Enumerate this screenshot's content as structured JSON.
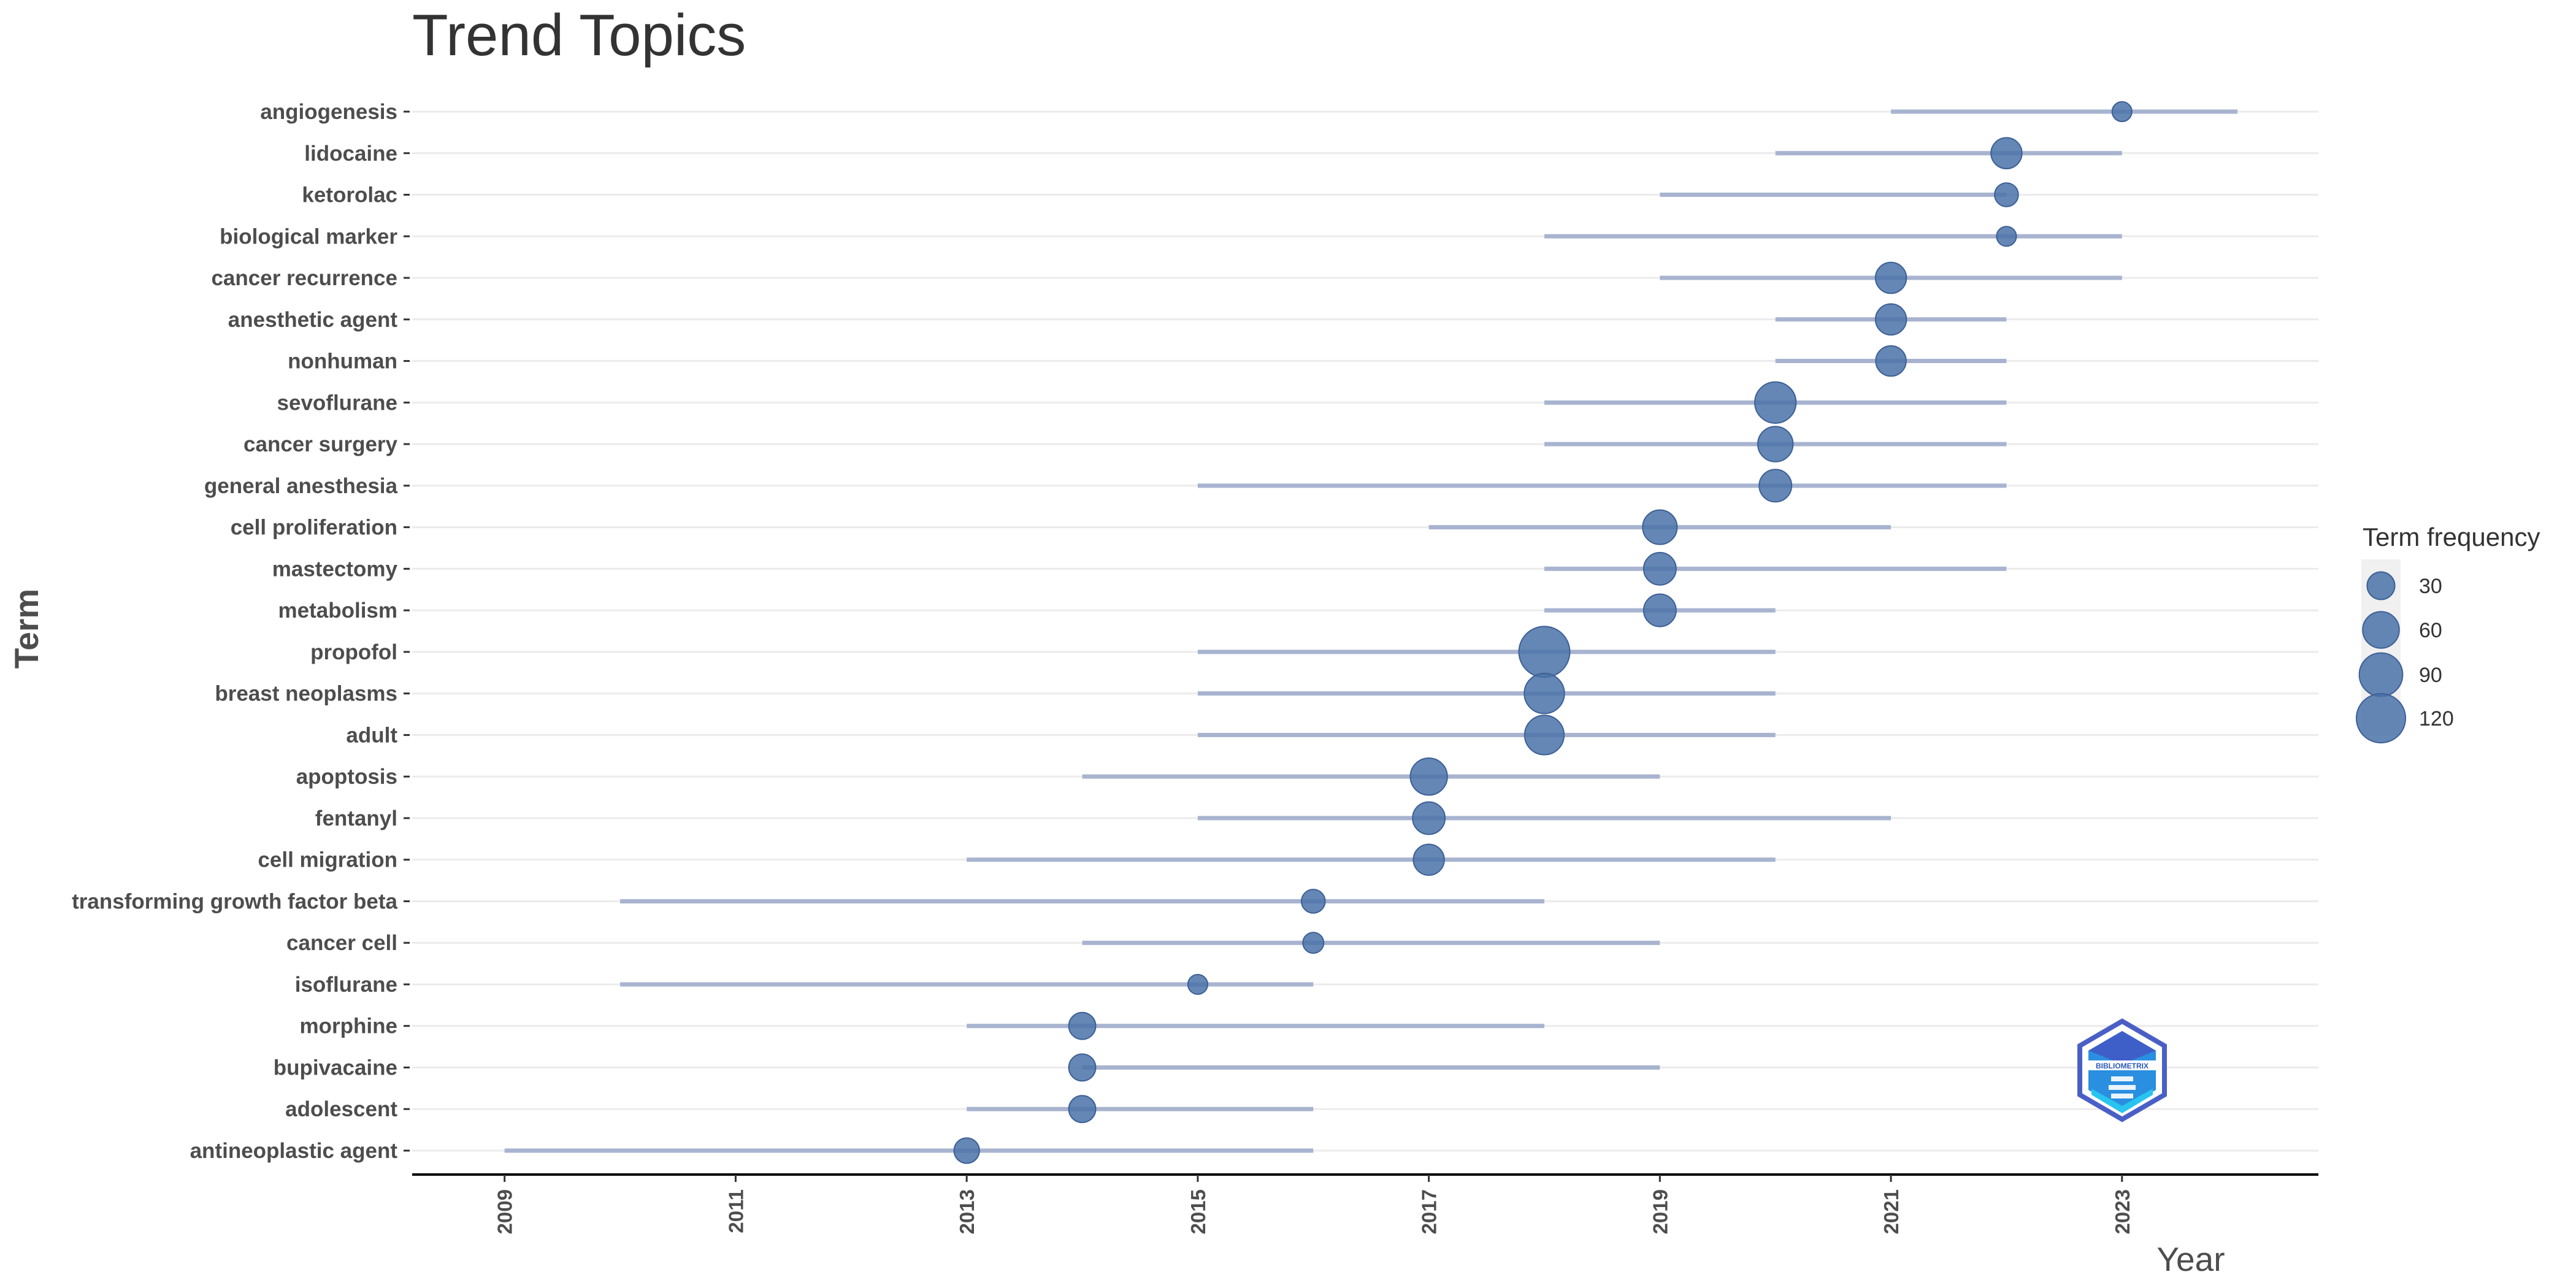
{
  "chart_data": {
    "type": "scatter",
    "title": "Trend Topics",
    "xlabel": "Year",
    "ylabel": "Term",
    "xlim": [
      2008.2,
      2024.7
    ],
    "x_ticks": [
      "2009",
      "2011",
      "2013",
      "2015",
      "2017",
      "2019",
      "2021",
      "2023"
    ],
    "grid": "horizontal",
    "legend_position": "right",
    "legend_title": "Term frequency",
    "legend_entries": [
      {
        "label": "30",
        "freq": 30
      },
      {
        "label": "60",
        "freq": 60
      },
      {
        "label": "90",
        "freq": 90
      },
      {
        "label": "120",
        "freq": 120
      }
    ],
    "point_color": "#4a72a8",
    "range_color": "#a8b4cf",
    "terms": [
      {
        "term": "angiogenesis",
        "q1": 2021,
        "median": 2023,
        "q3": 2024,
        "freq": 12
      },
      {
        "term": "lidocaine",
        "q1": 2020,
        "median": 2022,
        "q3": 2023,
        "freq": 40
      },
      {
        "term": "ketorolac",
        "q1": 2019,
        "median": 2022,
        "q3": 2022,
        "freq": 20
      },
      {
        "term": "biological marker",
        "q1": 2018,
        "median": 2022,
        "q3": 2023,
        "freq": 12
      },
      {
        "term": "cancer recurrence",
        "q1": 2019,
        "median": 2021,
        "q3": 2023,
        "freq": 40
      },
      {
        "term": "anesthetic agent",
        "q1": 2020,
        "median": 2021,
        "q3": 2022,
        "freq": 40
      },
      {
        "term": "nonhuman",
        "q1": 2020,
        "median": 2021,
        "q3": 2022,
        "freq": 38
      },
      {
        "term": "sevoflurane",
        "q1": 2018,
        "median": 2020,
        "q3": 2022,
        "freq": 80
      },
      {
        "term": "cancer surgery",
        "q1": 2018,
        "median": 2020,
        "q3": 2022,
        "freq": 55
      },
      {
        "term": "general anesthesia",
        "q1": 2015,
        "median": 2020,
        "q3": 2022,
        "freq": 45
      },
      {
        "term": "cell proliferation",
        "q1": 2017,
        "median": 2019,
        "q3": 2021,
        "freq": 52
      },
      {
        "term": "mastectomy",
        "q1": 2018,
        "median": 2019,
        "q3": 2022,
        "freq": 45
      },
      {
        "term": "metabolism",
        "q1": 2018,
        "median": 2019,
        "q3": 2020,
        "freq": 45
      },
      {
        "term": "propofol",
        "q1": 2015,
        "median": 2018,
        "q3": 2020,
        "freq": 130
      },
      {
        "term": "breast neoplasms",
        "q1": 2015,
        "median": 2018,
        "q3": 2020,
        "freq": 75
      },
      {
        "term": "adult",
        "q1": 2015,
        "median": 2018,
        "q3": 2020,
        "freq": 72
      },
      {
        "term": "apoptosis",
        "q1": 2014,
        "median": 2017,
        "q3": 2019,
        "freq": 62
      },
      {
        "term": "fentanyl",
        "q1": 2015,
        "median": 2017,
        "q3": 2021,
        "freq": 45
      },
      {
        "term": "cell migration",
        "q1": 2013,
        "median": 2017,
        "q3": 2020,
        "freq": 40
      },
      {
        "term": "transforming growth factor beta",
        "q1": 2010,
        "median": 2016,
        "q3": 2018,
        "freq": 20
      },
      {
        "term": "cancer cell",
        "q1": 2014,
        "median": 2016,
        "q3": 2019,
        "freq": 14
      },
      {
        "term": "isoflurane",
        "q1": 2010,
        "median": 2015,
        "q3": 2016,
        "freq": 12
      },
      {
        "term": "morphine",
        "q1": 2013,
        "median": 2014,
        "q3": 2018,
        "freq": 28
      },
      {
        "term": "bupivacaine",
        "q1": 2014,
        "median": 2014,
        "q3": 2019,
        "freq": 28
      },
      {
        "term": "adolescent",
        "q1": 2013,
        "median": 2014,
        "q3": 2016,
        "freq": 28
      },
      {
        "term": "antineoplastic agent",
        "q1": 2009,
        "median": 2013,
        "q3": 2016,
        "freq": 24
      }
    ]
  },
  "logo": {
    "name": "bibliometrix-logo",
    "text": "BIBLIOMETRIX"
  }
}
